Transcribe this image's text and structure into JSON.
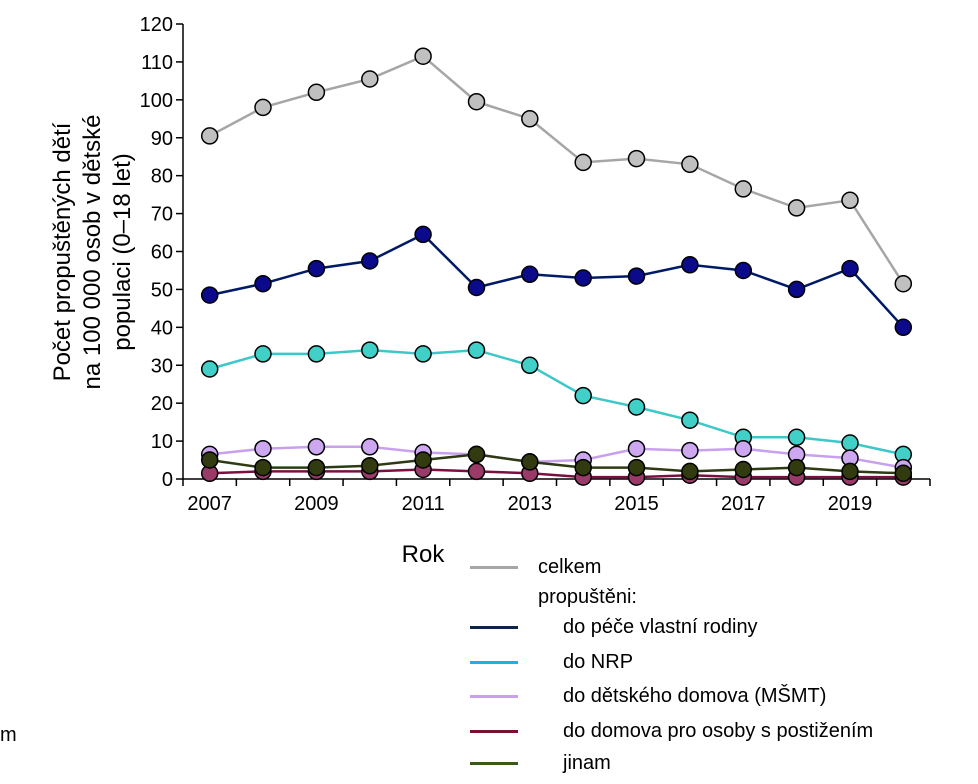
{
  "chart_data": {
    "type": "line",
    "title": "",
    "xlabel": "Rok",
    "ylabel_lines": [
      "Počet propuštěných  dětí",
      "na 100 000 osob v dětské",
      "populaci (0–18 let)"
    ],
    "ylim": [
      0,
      120
    ],
    "y_ticks": [
      0,
      10,
      20,
      30,
      40,
      50,
      60,
      70,
      80,
      90,
      100,
      110,
      120
    ],
    "x": [
      2007,
      2008,
      2009,
      2010,
      2011,
      2012,
      2013,
      2014,
      2015,
      2016,
      2017,
      2018,
      2019,
      2020
    ],
    "x_tick_labels": [
      "2007",
      "2009",
      "2011",
      "2013",
      "2015",
      "2017",
      "2019"
    ],
    "grid": false,
    "legend_position": "bottom-right",
    "legend_subheading": "propuštěni:",
    "series": [
      {
        "name": "celkem",
        "line_color": "#a6a6a6",
        "marker_color": "#c0c0c0",
        "values": [
          90.5,
          98,
          102,
          105.5,
          111.5,
          99.5,
          95,
          83.5,
          84.5,
          83,
          76.5,
          71.5,
          73.5,
          51.5
        ]
      },
      {
        "name": "do péče vlastní rodiny",
        "line_color": "#001a66",
        "marker_color": "#0a0a8a",
        "values": [
          48.5,
          51.5,
          55.5,
          57.5,
          64.5,
          50.5,
          54,
          53,
          53.5,
          56.5,
          55,
          50,
          55.5,
          40
        ]
      },
      {
        "name": "do NRP",
        "line_color": "#3cc8c8",
        "marker_color": "#40d0c8",
        "values": [
          29,
          33,
          33,
          34,
          33,
          34,
          30,
          22,
          19,
          15.5,
          11,
          11,
          9.5,
          6.5
        ]
      },
      {
        "name": "do dětského domova (MŠMT)",
        "line_color": "#c9a0ee",
        "marker_color": "#cda8f0",
        "values": [
          6.5,
          8,
          8.5,
          8.5,
          7,
          6.5,
          4.5,
          5,
          8,
          7.5,
          8,
          6.5,
          5.5,
          3
        ]
      },
      {
        "name": "do domova pro osoby s postižením",
        "line_color": "#7a1040",
        "marker_color": "#9a3a68",
        "values": [
          1.5,
          2,
          2,
          2,
          2.5,
          2,
          1.5,
          0.5,
          0.5,
          1,
          0.5,
          0.5,
          0.5,
          0.5
        ]
      },
      {
        "name": "jinam",
        "line_color": "#2e3a12",
        "marker_color": "#323a10",
        "values": [
          5,
          3,
          3,
          3.5,
          5,
          6.5,
          4.5,
          3,
          3,
          2,
          2.5,
          3,
          2,
          1.5
        ]
      }
    ],
    "legend_line_colors": [
      "#a6a6a6",
      "#0d2448",
      "#1cb0e8",
      "#c9a0ee",
      "#7a1030",
      "#3a5a1a"
    ],
    "stray_text": "m"
  }
}
